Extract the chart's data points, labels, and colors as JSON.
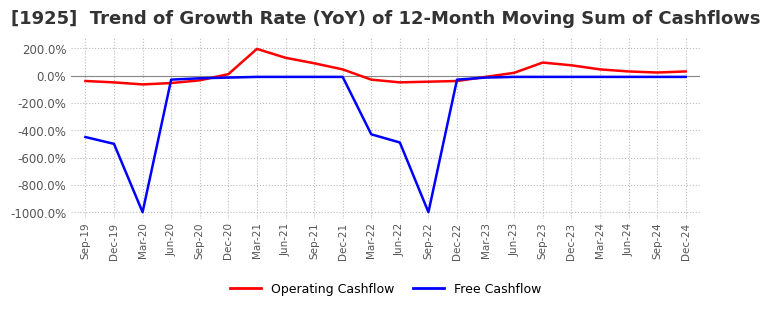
{
  "title": "[1925]  Trend of Growth Rate (YoY) of 12-Month Moving Sum of Cashflows",
  "title_fontsize": 13,
  "title_color": "#333333",
  "background_color": "#ffffff",
  "plot_background_color": "#ffffff",
  "grid_color": "#bbbbbb",
  "ylim": [
    -1050,
    280
  ],
  "yticks": [
    200,
    0,
    -200,
    -400,
    -600,
    -800,
    -1000
  ],
  "legend_labels": [
    "Operating Cashflow",
    "Free Cashflow"
  ],
  "legend_colors": [
    "#ff0000",
    "#0000ff"
  ],
  "x_labels": [
    "Sep-19",
    "Dec-19",
    "Mar-20",
    "Jun-20",
    "Sep-20",
    "Dec-20",
    "Mar-21",
    "Jun-21",
    "Sep-21",
    "Dec-21",
    "Mar-22",
    "Jun-22",
    "Sep-22",
    "Dec-22",
    "Mar-23",
    "Jun-23",
    "Sep-23",
    "Dec-23",
    "Mar-24",
    "Jun-24",
    "Sep-24",
    "Dec-24"
  ],
  "operating_cashflow": [
    -40,
    -50,
    -65,
    -55,
    -35,
    10,
    195,
    130,
    90,
    45,
    -30,
    -50,
    -45,
    -40,
    -10,
    20,
    95,
    75,
    45,
    30,
    22,
    30
  ],
  "free_cashflow": [
    -450,
    -500,
    -1000,
    -30,
    -20,
    -15,
    -10,
    -10,
    -10,
    -10,
    -430,
    -490,
    -1000,
    -30,
    -15,
    -10,
    -10,
    -10,
    -10,
    -10,
    -10,
    -10
  ],
  "line_width": 1.8
}
